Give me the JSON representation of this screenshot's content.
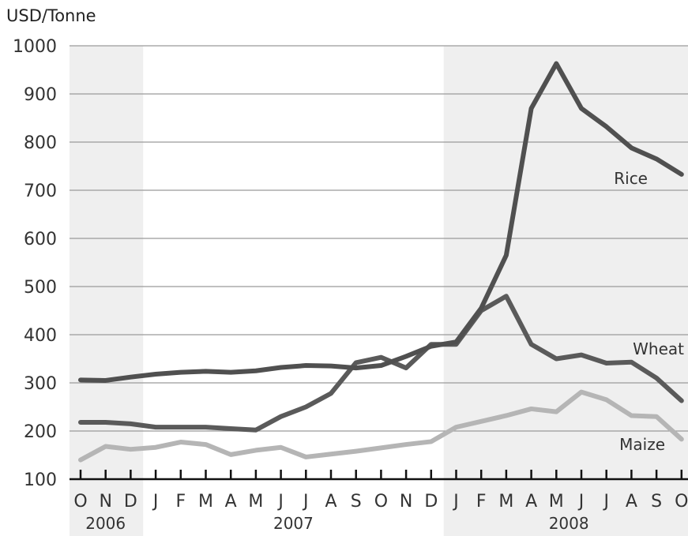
{
  "chart_data": {
    "type": "line",
    "ylabel": "USD/Tonne",
    "ylim": [
      100,
      1000
    ],
    "yticks": [
      100,
      200,
      300,
      400,
      500,
      600,
      700,
      800,
      900,
      1000
    ],
    "grid": true,
    "months": [
      "O",
      "N",
      "D",
      "J",
      "F",
      "M",
      "A",
      "M",
      "J",
      "J",
      "A",
      "S",
      "O",
      "N",
      "D",
      "J",
      "F",
      "M",
      "A",
      "M",
      "J",
      "J",
      "A",
      "S",
      "O"
    ],
    "years": [
      {
        "label": "2006",
        "start": 0,
        "end": 2,
        "shaded": true
      },
      {
        "label": "2007",
        "start": 3,
        "end": 14,
        "shaded": false
      },
      {
        "label": "2008",
        "start": 15,
        "end": 24,
        "shaded": true
      }
    ],
    "series": [
      {
        "name": "Rice",
        "color": "#505050",
        "values": [
          306,
          305,
          312,
          318,
          322,
          324,
          322,
          325,
          332,
          336,
          335,
          331,
          336,
          355,
          376,
          385,
          455,
          565,
          870,
          963,
          870,
          832,
          788,
          765,
          733
        ]
      },
      {
        "name": "Wheat",
        "color": "#5a5a5a",
        "values": [
          218,
          218,
          215,
          208,
          208,
          208,
          205,
          202,
          230,
          250,
          278,
          342,
          353,
          331,
          380,
          380,
          450,
          480,
          380,
          350,
          358,
          341,
          343,
          310,
          263
        ]
      },
      {
        "name": "Maize",
        "color": "#b5b5b5",
        "values": [
          140,
          168,
          162,
          166,
          177,
          172,
          151,
          160,
          166,
          146,
          152,
          158,
          165,
          172,
          178,
          208,
          220,
          232,
          246,
          240,
          281,
          265,
          232,
          230,
          183
        ]
      }
    ]
  }
}
